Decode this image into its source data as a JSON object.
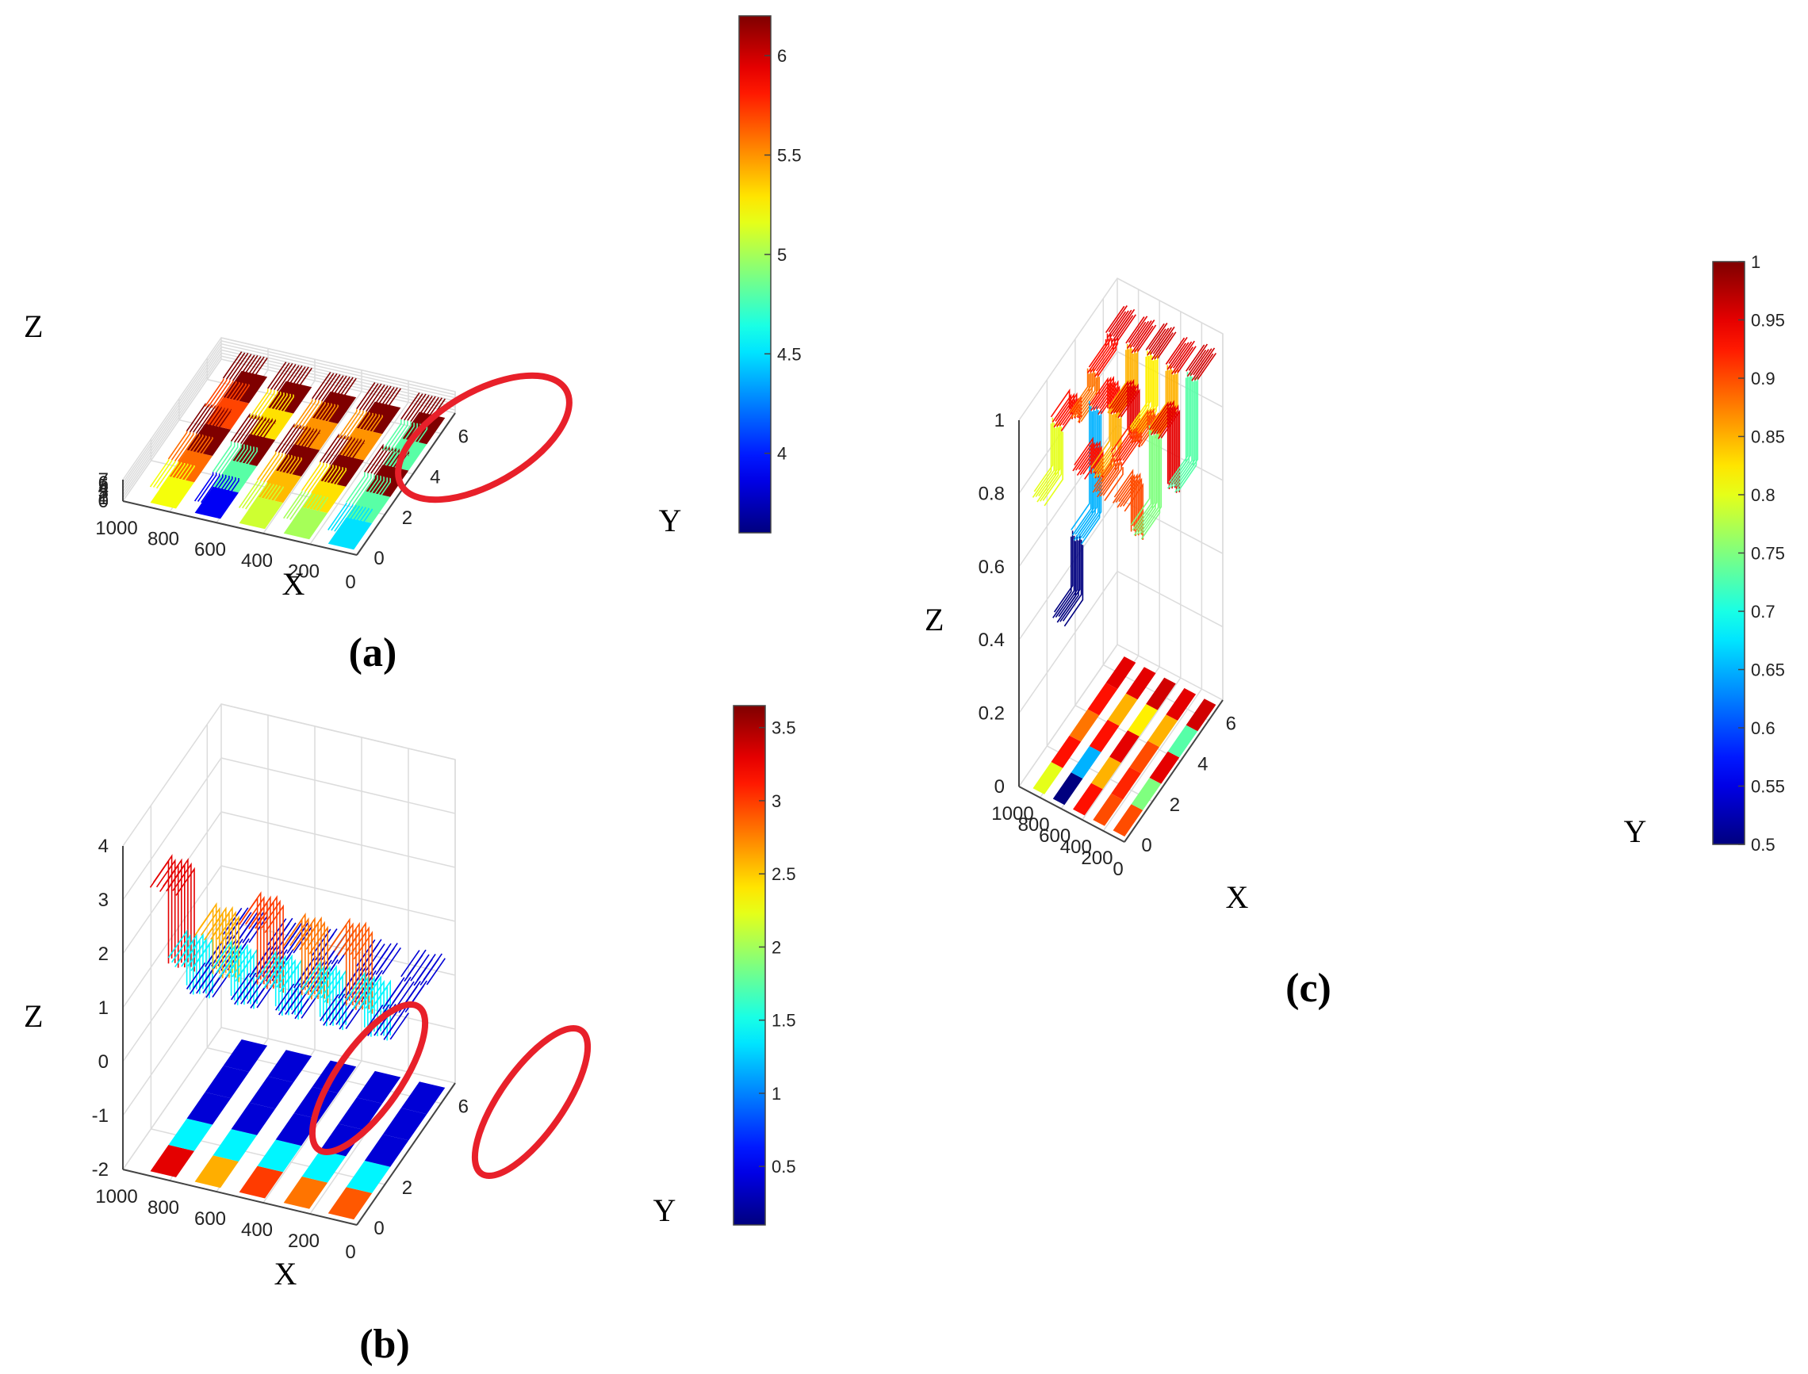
{
  "figure": {
    "colors": {
      "jet": [
        "#00007f",
        "#0000ff",
        "#007fff",
        "#00ffff",
        "#7fff7f",
        "#ffff00",
        "#ff7f00",
        "#ff0000",
        "#7f0000"
      ],
      "grid": "#dcdcdc",
      "axis": "#444444",
      "highlight": "#e8202a"
    }
  },
  "chart_data": [
    {
      "panel": "a",
      "caption": "(a)",
      "type": "surface3d",
      "xlabel": "X",
      "ylabel": "Y",
      "zlabel": "Z",
      "xlim": [
        0,
        1000
      ],
      "ylim": [
        0,
        7
      ],
      "zlim": [
        0,
        7
      ],
      "xticks": [
        "1000",
        "800",
        "600",
        "400",
        "200",
        "0"
      ],
      "yticks": [
        "0",
        "2",
        "4",
        "6"
      ],
      "zticks": [
        "0",
        "1",
        "2",
        "3",
        "4",
        "5",
        "6",
        "7"
      ],
      "colorbar": {
        "ticks": [
          "4",
          "4.5",
          "5",
          "5.5",
          "6"
        ],
        "range": [
          3.6,
          6.2
        ]
      },
      "strip_x_centers": [
        840,
        650,
        460,
        270,
        80
      ],
      "bands": [
        [
          5.2,
          5.6,
          6.2,
          5.7,
          6.2
        ],
        [
          3.9,
          4.8,
          6.2,
          5.3,
          6.2
        ],
        [
          5.1,
          5.4,
          6.2,
          5.5,
          6.2
        ],
        [
          5.0,
          5.3,
          6.2,
          5.5,
          6.2
        ],
        [
          4.5,
          4.8,
          6.2,
          4.8,
          6.2
        ]
      ],
      "highlight_ellipses": 1
    },
    {
      "panel": "b",
      "caption": "(b)",
      "type": "surface3d",
      "xlabel": "X",
      "ylabel": "Y",
      "zlabel": "Z",
      "xlim": [
        0,
        1000
      ],
      "ylim": [
        0,
        7
      ],
      "zlim": [
        -2,
        4
      ],
      "xticks": [
        "1000",
        "800",
        "600",
        "400",
        "200",
        "0"
      ],
      "yticks": [
        "0",
        "2",
        "6"
      ],
      "zticks": [
        "-2",
        "-1",
        "0",
        "1",
        "2",
        "3",
        "4"
      ],
      "colorbar": {
        "ticks": [
          "0.5",
          "1",
          "1.5",
          "2",
          "2.5",
          "3",
          "3.5"
        ],
        "range": [
          0.1,
          3.65
        ]
      },
      "strip_x_centers": [
        840,
        650,
        460,
        270,
        80
      ],
      "bands": [
        [
          3.3,
          1.4,
          0.4,
          0.4,
          0.4
        ],
        [
          2.6,
          1.4,
          0.4,
          0.4,
          0.4
        ],
        [
          3.0,
          1.4,
          0.4,
          0.4,
          0.4
        ],
        [
          2.8,
          1.4,
          0.4,
          0.4,
          0.4
        ],
        [
          2.9,
          1.4,
          0.4,
          0.4,
          0.4
        ]
      ],
      "highlight_ellipses": 2
    },
    {
      "panel": "c",
      "caption": "(c)",
      "type": "surface3d",
      "xlabel": "X",
      "ylabel": "Y",
      "zlabel": "Z",
      "xlim": [
        0,
        1000
      ],
      "ylim": [
        0,
        7
      ],
      "zlim": [
        0,
        1
      ],
      "xticks": [
        "1000",
        "800",
        "600",
        "400",
        "200",
        "0"
      ],
      "yticks": [
        "0",
        "2",
        "4",
        "6"
      ],
      "zticks": [
        "0",
        "0.2",
        "0.4",
        "0.6",
        "0.8",
        "1"
      ],
      "colorbar": {
        "ticks": [
          "0.5",
          "0.55",
          "0.6",
          "0.65",
          "0.7",
          "0.75",
          "0.8",
          "0.85",
          "0.9",
          "0.95",
          "1"
        ],
        "range": [
          0.5,
          1.0
        ]
      },
      "strip_x_centers": [
        840,
        650,
        460,
        270,
        80
      ],
      "bands": [
        [
          0.8,
          0.93,
          0.88,
          0.93,
          0.95
        ],
        [
          0.5,
          0.65,
          0.93,
          0.85,
          0.95
        ],
        [
          0.93,
          0.85,
          0.95,
          0.82,
          0.96
        ],
        [
          0.9,
          0.92,
          0.9,
          0.85,
          0.95
        ],
        [
          0.9,
          0.75,
          0.95,
          0.73,
          0.96
        ]
      ],
      "highlight_ellipses": 0
    }
  ]
}
